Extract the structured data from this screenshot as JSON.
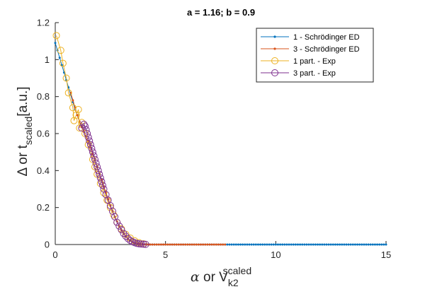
{
  "chart_data": {
    "type": "line",
    "title": "a = 1.16; b = 0.9",
    "xlabel": {
      "symbol": "α",
      "mid": " or V",
      "sub": "k2",
      "sup": "scaled"
    },
    "ylabel": {
      "symbol": "Δ",
      "mid": " or t",
      "sub": "scaled",
      "tail": "[a.u.]"
    },
    "xlim": [
      0,
      15
    ],
    "ylim": [
      0,
      1.2
    ],
    "xticks": [
      0,
      5,
      10,
      15
    ],
    "xtick_labels": [
      "0",
      "5",
      "10",
      "15"
    ],
    "yticks": [
      0,
      0.2,
      0.4,
      0.6,
      0.8,
      1.0,
      1.2
    ],
    "ytick_labels": [
      "0",
      "0.2",
      "0.4",
      "0.6",
      "0.8",
      "1",
      "1.2"
    ],
    "grid": false,
    "legend_location": "top-right",
    "series": [
      {
        "name": "1 - Schrödinger ED",
        "color": "#0072BD",
        "marker": "dot",
        "x": [
          0,
          0.1,
          0.2,
          0.3,
          0.4,
          0.5,
          0.6,
          0.7,
          0.8,
          0.9,
          1.0,
          1.1,
          1.2,
          1.3,
          1.4,
          1.5,
          1.6,
          1.7,
          1.8,
          1.9,
          2.0,
          2.1,
          2.2,
          2.3,
          2.4,
          2.5,
          2.6,
          2.7,
          2.8,
          2.9,
          3.0,
          3.1,
          3.2,
          3.3,
          3.4,
          3.5,
          3.6,
          3.7,
          3.8,
          3.9,
          4.0,
          4.1,
          4.2,
          4.3,
          4.4,
          4.5,
          4.6,
          4.7,
          4.8,
          4.9,
          5.0,
          5.1,
          5.2,
          5.3,
          5.4,
          5.5,
          5.6,
          5.7,
          5.8,
          5.9,
          6.0,
          6.1,
          6.2,
          6.3,
          6.4,
          6.5,
          6.6,
          6.7,
          6.8,
          6.9,
          7.0,
          7.1,
          7.2,
          7.3,
          7.4,
          7.5,
          7.6,
          7.7,
          7.8,
          7.9,
          8.0,
          8.1,
          8.2,
          8.3,
          8.4,
          8.5,
          8.6,
          8.7,
          8.8,
          8.9,
          9.0,
          9.1,
          9.2,
          9.3,
          9.4,
          9.5,
          9.6,
          9.7,
          9.8,
          9.9,
          10.0,
          10.1,
          10.2,
          10.3,
          10.4,
          10.5,
          10.6,
          10.7,
          10.8,
          10.9,
          11.0,
          11.1,
          11.2,
          11.3,
          11.4,
          11.5,
          11.6,
          11.7,
          11.8,
          11.9,
          12.0,
          12.1,
          12.2,
          12.3,
          12.4,
          12.5,
          12.6,
          12.7,
          12.8,
          12.9,
          13.0,
          13.1,
          13.2,
          13.3,
          13.4,
          13.5,
          13.6,
          13.7,
          13.8,
          13.9,
          14.0,
          14.1,
          14.2,
          14.3,
          14.4,
          14.5,
          14.6,
          14.7,
          14.8,
          14.9,
          15.0
        ],
        "y": [
          1.09,
          1.05,
          1.01,
          0.97,
          0.93,
          0.89,
          0.85,
          0.81,
          0.77,
          0.73,
          0.7,
          0.665,
          0.635,
          0.61,
          0.585,
          0.56,
          0.525,
          0.49,
          0.455,
          0.42,
          0.385,
          0.35,
          0.315,
          0.28,
          0.245,
          0.21,
          0.18,
          0.15,
          0.125,
          0.1,
          0.078,
          0.058,
          0.042,
          0.03,
          0.02,
          0.013,
          0.008,
          0.005,
          0.003,
          0.002,
          0.001,
          0.001,
          0,
          0,
          0,
          0,
          0,
          0,
          0,
          0,
          0,
          0,
          0,
          0,
          0,
          0,
          0,
          0,
          0,
          0,
          0,
          0,
          0,
          0,
          0,
          0,
          0,
          0,
          0,
          0,
          0,
          0,
          0,
          0,
          0,
          0,
          0,
          0,
          0,
          0,
          0,
          0,
          0,
          0,
          0,
          0,
          0,
          0,
          0,
          0,
          0,
          0,
          0,
          0,
          0,
          0,
          0,
          0,
          0,
          0,
          0,
          0,
          0,
          0,
          0,
          0,
          0,
          0,
          0,
          0,
          0,
          0,
          0,
          0,
          0,
          0,
          0,
          0,
          0,
          0,
          0,
          0,
          0,
          0,
          0,
          0,
          0,
          0,
          0,
          0,
          0,
          0,
          0,
          0,
          0,
          0,
          0,
          0,
          0,
          0,
          0,
          0,
          0,
          0,
          0,
          0,
          0,
          0,
          0,
          0,
          0
        ]
      },
      {
        "name": "3 - Schrödinger ED",
        "color": "#D95319",
        "marker": "dot",
        "x": [
          0.7,
          0.8,
          0.9,
          1.0,
          1.1,
          1.2,
          1.3,
          1.4,
          1.5,
          1.6,
          1.7,
          1.8,
          1.9,
          2.0,
          2.1,
          2.2,
          2.3,
          2.4,
          2.5,
          2.6,
          2.7,
          2.8,
          2.9,
          3.0,
          3.1,
          3.2,
          3.3,
          3.4,
          3.5,
          3.6,
          3.7,
          3.8,
          3.9,
          4.0,
          4.1,
          4.2,
          4.3,
          4.4,
          4.5,
          4.6,
          4.7,
          4.8,
          4.9,
          5.0,
          5.1,
          5.2,
          5.3,
          5.4,
          5.5,
          5.6,
          5.7,
          5.8,
          5.9,
          6.0,
          6.1,
          6.2,
          6.3,
          6.4,
          6.5,
          6.6,
          6.7,
          6.8,
          6.9,
          7.0,
          7.1,
          7.2,
          7.3,
          7.4,
          7.5,
          7.6,
          7.7
        ],
        "y": [
          0.82,
          0.78,
          0.74,
          0.7,
          0.665,
          0.635,
          0.61,
          0.585,
          0.56,
          0.525,
          0.49,
          0.455,
          0.42,
          0.385,
          0.35,
          0.315,
          0.28,
          0.245,
          0.21,
          0.18,
          0.15,
          0.125,
          0.1,
          0.078,
          0.058,
          0.042,
          0.03,
          0.02,
          0.013,
          0.008,
          0.005,
          0.003,
          0.002,
          0.001,
          0.001,
          0,
          0,
          0,
          0,
          0,
          0,
          0,
          0,
          0,
          0,
          0,
          0,
          0,
          0,
          0,
          0,
          0,
          0,
          0,
          0,
          0,
          0,
          0,
          0,
          0,
          0,
          0,
          0,
          0,
          0,
          0,
          0,
          0,
          0,
          0,
          0
        ]
      },
      {
        "name": "1 part. - Exp",
        "color": "#EDB120",
        "marker": "circle",
        "x": [
          0.05,
          0.25,
          0.35,
          0.5,
          0.6,
          0.8,
          0.85,
          0.95,
          1.05,
          1.1,
          1.2,
          1.35,
          1.5,
          1.7,
          1.8,
          1.9,
          2.05,
          2.2,
          2.35,
          2.5,
          2.65,
          2.8,
          3.0,
          3.2,
          3.4,
          3.6,
          3.8,
          4.0
        ],
        "y": [
          1.13,
          1.05,
          0.98,
          0.9,
          0.82,
          0.74,
          0.67,
          0.7,
          0.73,
          0.63,
          0.66,
          0.6,
          0.54,
          0.46,
          0.42,
          0.38,
          0.33,
          0.28,
          0.24,
          0.2,
          0.16,
          0.12,
          0.085,
          0.055,
          0.035,
          0.02,
          0.01,
          0.004
        ]
      },
      {
        "name": "3 part. - Exp",
        "color": "#7E2F8E",
        "marker": "circle",
        "x": [
          1.2,
          1.3,
          1.35,
          1.4,
          1.45,
          1.5,
          1.55,
          1.6,
          1.65,
          1.7,
          1.75,
          1.8,
          1.85,
          1.9,
          1.95,
          2.0,
          2.05,
          2.1,
          2.15,
          2.2,
          2.3,
          2.4,
          2.5,
          2.6,
          2.7,
          2.8,
          2.9,
          3.0,
          3.1,
          3.2,
          3.3,
          3.4,
          3.5,
          3.6,
          3.7,
          3.8,
          3.9,
          4.0,
          4.1
        ],
        "y": [
          0.63,
          0.65,
          0.64,
          0.62,
          0.6,
          0.58,
          0.56,
          0.54,
          0.52,
          0.5,
          0.48,
          0.46,
          0.44,
          0.42,
          0.4,
          0.38,
          0.36,
          0.34,
          0.32,
          0.3,
          0.27,
          0.24,
          0.21,
          0.18,
          0.15,
          0.12,
          0.1,
          0.08,
          0.06,
          0.045,
          0.032,
          0.022,
          0.015,
          0.01,
          0.006,
          0.004,
          0.003,
          0.002,
          0.001
        ]
      }
    ]
  }
}
